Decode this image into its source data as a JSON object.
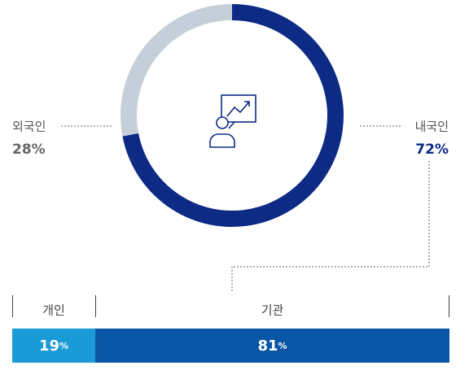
{
  "chart_data": [
    {
      "type": "donut",
      "categories": [
        "내국인",
        "외국인"
      ],
      "values": [
        72,
        28
      ],
      "value_labels": [
        "72%",
        "28%"
      ],
      "colors": [
        "#0d2a85",
        "#c5cfd9"
      ]
    },
    {
      "type": "stacked-bar",
      "categories": [
        "개인",
        "기관"
      ],
      "values": [
        19,
        81
      ],
      "value_labels": [
        "19%",
        "81%"
      ],
      "colors": [
        "#1a9ad6",
        "#0a56a6"
      ],
      "xlim": [
        0,
        100
      ]
    }
  ]
}
